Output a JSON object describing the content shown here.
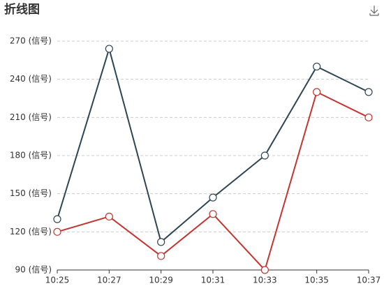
{
  "chart_data": {
    "type": "line",
    "title": "折线图",
    "categories": [
      "10:25",
      "10:27",
      "10:29",
      "10:31",
      "10:33",
      "10:35",
      "10:37"
    ],
    "series": [
      {
        "color": "#2f4554",
        "values": [
          130,
          264,
          112,
          147,
          180,
          250,
          230
        ]
      },
      {
        "color": "#c23531",
        "values": [
          120,
          132,
          101,
          134,
          90,
          230,
          210
        ]
      }
    ],
    "ylim": [
      90,
      270
    ],
    "yticks": [
      {
        "value": 90,
        "label": "90 (信号)"
      },
      {
        "value": 120,
        "label": "120 (信号)"
      },
      {
        "value": 150,
        "label": "150 (信号)"
      },
      {
        "value": 180,
        "label": "180 (信号)"
      },
      {
        "value": 210,
        "label": "210 (信号)"
      },
      {
        "value": 240,
        "label": "240 (信号)"
      },
      {
        "value": 270,
        "label": "270 (信号)"
      }
    ],
    "grid": true
  }
}
